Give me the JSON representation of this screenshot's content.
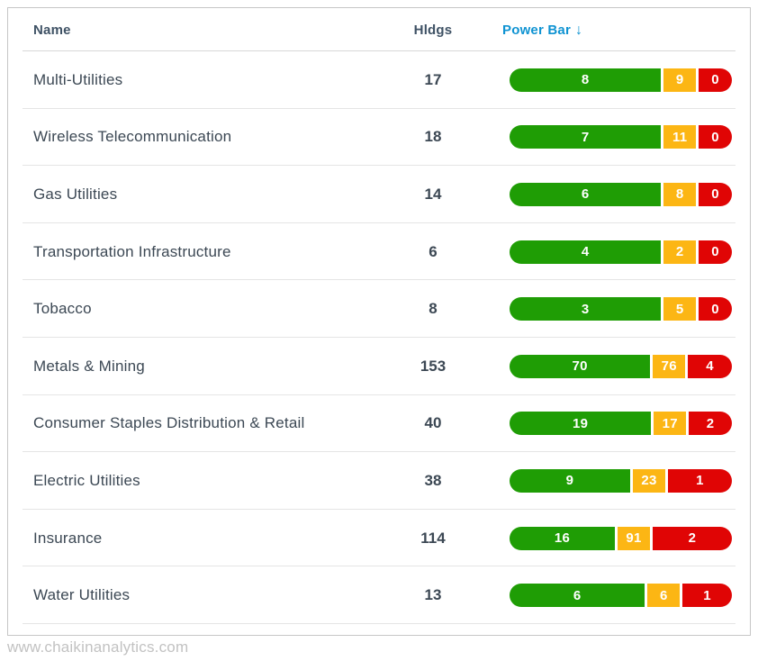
{
  "table": {
    "columns": {
      "name": "Name",
      "hldgs": "Hldgs",
      "power_bar": "Power Bar",
      "sort_arrow": "↓"
    },
    "rows": [
      {
        "name": "Multi-Utilities",
        "hldgs": "17",
        "bullish": "8",
        "neutral": "9",
        "bearish": "0",
        "widths": {
          "bullish": 169,
          "neutral": 36,
          "bearish": 37
        }
      },
      {
        "name": "Wireless Telecommunication",
        "hldgs": "18",
        "bullish": "7",
        "neutral": "11",
        "bearish": "0",
        "widths": {
          "bullish": 169,
          "neutral": 36,
          "bearish": 37
        }
      },
      {
        "name": "Gas Utilities",
        "hldgs": "14",
        "bullish": "6",
        "neutral": "8",
        "bearish": "0",
        "widths": {
          "bullish": 169,
          "neutral": 36,
          "bearish": 37
        }
      },
      {
        "name": "Transportation Infrastructure",
        "hldgs": "6",
        "bullish": "4",
        "neutral": "2",
        "bearish": "0",
        "widths": {
          "bullish": 169,
          "neutral": 36,
          "bearish": 37
        }
      },
      {
        "name": "Tobacco",
        "hldgs": "8",
        "bullish": "3",
        "neutral": "5",
        "bearish": "0",
        "widths": {
          "bullish": 169,
          "neutral": 36,
          "bearish": 37
        }
      },
      {
        "name": "Metals & Mining",
        "hldgs": "153",
        "bullish": "70",
        "neutral": "76",
        "bearish": "4",
        "widths": {
          "bullish": 157,
          "neutral": 36,
          "bearish": 49
        }
      },
      {
        "name": "Consumer Staples Distribution & Retail",
        "hldgs": "40",
        "bullish": "19",
        "neutral": "17",
        "bearish": "2",
        "widths": {
          "bullish": 158,
          "neutral": 36,
          "bearish": 48
        }
      },
      {
        "name": "Electric Utilities",
        "hldgs": "38",
        "bullish": "9",
        "neutral": "23",
        "bearish": "1",
        "widths": {
          "bullish": 134,
          "neutral": 36,
          "bearish": 71
        }
      },
      {
        "name": "Insurance",
        "hldgs": "114",
        "bullish": "16",
        "neutral": "91",
        "bearish": "2",
        "widths": {
          "bullish": 117,
          "neutral": 36,
          "bearish": 88
        }
      },
      {
        "name": "Water Utilities",
        "hldgs": "13",
        "bullish": "6",
        "neutral": "6",
        "bearish": "1",
        "widths": {
          "bullish": 151,
          "neutral": 36,
          "bearish": 55
        }
      }
    ]
  },
  "colors": {
    "bullish": "#1f9d05",
    "neutral": "#fcb614",
    "bearish": "#e00505",
    "sort_accent": "#0f93d2",
    "header_text": "#3f5265",
    "row_text": "#3c4854"
  },
  "footer": {
    "url": "www.chaikinanalytics.com"
  }
}
